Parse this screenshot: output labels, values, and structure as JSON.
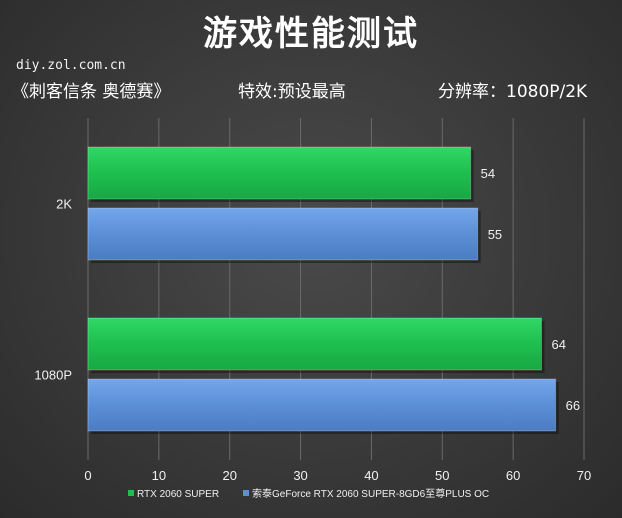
{
  "header": {
    "title": "游戏性能测试",
    "site": "diy.zol.com.cn",
    "game": "《刺客信条 奥德赛》",
    "effect": "特效:预设最高",
    "resolution": "分辨率：1080P/2K"
  },
  "chart_data": {
    "type": "bar",
    "orientation": "horizontal",
    "categories": [
      "2K",
      "1080P"
    ],
    "series": [
      {
        "name": "RTX 2060 SUPER",
        "values": [
          54,
          64
        ],
        "color": "#1fbf4f"
      },
      {
        "name": "索泰GeForce RTX 2060 SUPER-8GD6至尊PLUS OC",
        "values": [
          55,
          66
        ],
        "color": "#5b8fd6"
      }
    ],
    "xlim": [
      0,
      70
    ],
    "xticks": [
      0,
      10,
      20,
      30,
      40,
      50,
      60,
      70
    ],
    "grid": true,
    "legend_position": "bottom"
  }
}
